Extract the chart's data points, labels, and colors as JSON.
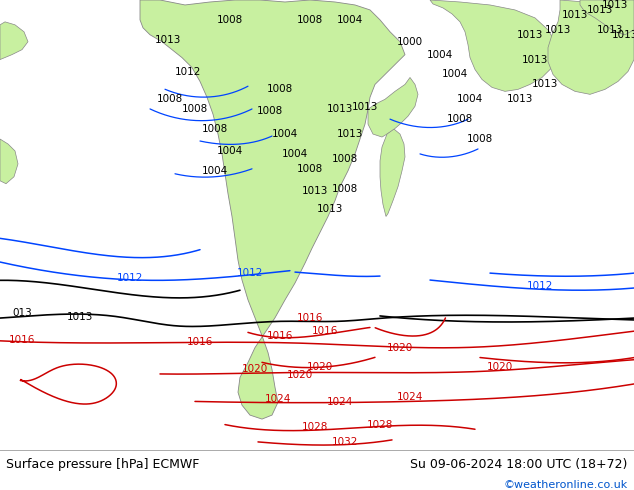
{
  "title_left": "Surface pressure [hPa] ECMWF",
  "title_right": "Su 09-06-2024 18:00 UTC (18+72)",
  "copyright": "©weatheronline.co.uk",
  "bg_color": "#ffffff",
  "ocean_color": "#d8d8d8",
  "land_color": "#c8f0a0",
  "bottom_bar_color": "#ffffff",
  "left_text_color": "#000000",
  "right_text_color": "#000000",
  "copyright_color": "#0055cc",
  "figwidth": 6.34,
  "figheight": 4.9,
  "dpi": 100,
  "font_size_labels": 9.0,
  "font_size_copyright": 8.0
}
